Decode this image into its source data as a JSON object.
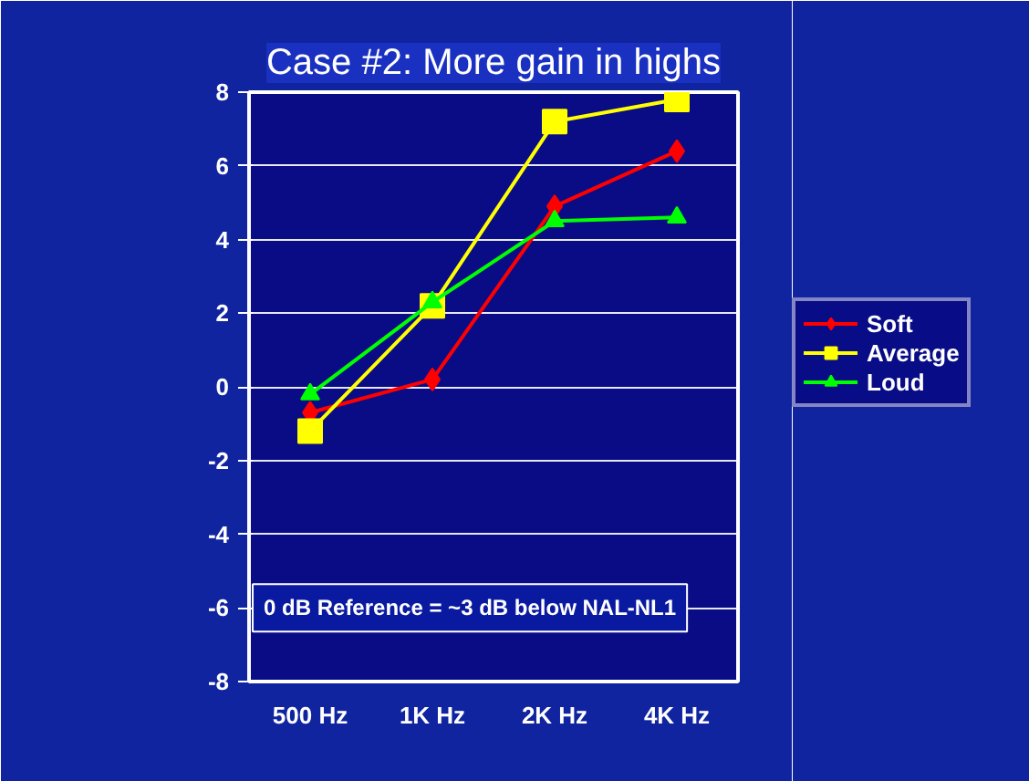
{
  "chart_data": {
    "type": "line",
    "title": "Case #2: More gain in highs",
    "categories": [
      "500 Hz",
      "1K Hz",
      "2K Hz",
      "4K Hz"
    ],
    "series": [
      {
        "name": "Soft",
        "color": "#ff0000",
        "marker": "diamond",
        "values": [
          -0.7,
          0.2,
          4.9,
          6.4
        ]
      },
      {
        "name": "Average",
        "color": "#ffff00",
        "marker": "square",
        "values": [
          -1.2,
          2.2,
          7.2,
          7.8
        ]
      },
      {
        "name": "Loud",
        "color": "#00ff00",
        "marker": "triangle",
        "values": [
          -0.2,
          2.3,
          4.5,
          4.6
        ]
      }
    ],
    "ylim": [
      -8,
      8
    ],
    "yticks": [
      -8,
      -6,
      -4,
      -2,
      0,
      2,
      4,
      6,
      8
    ],
    "grid": "y",
    "legend": "right",
    "annotations": [
      "0 dB Reference = ~3 dB below NAL-NL1"
    ]
  }
}
